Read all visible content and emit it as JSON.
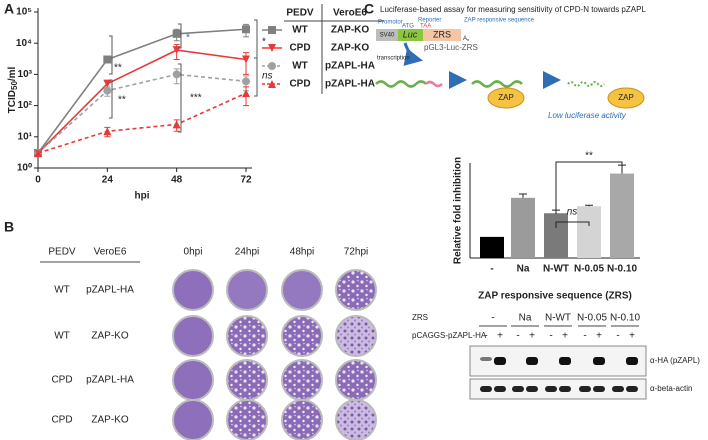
{
  "panels": {
    "a": "A",
    "b": "B",
    "c": "C"
  },
  "chart_data": [
    {
      "type": "line",
      "ylabel_parts": [
        "TCID",
        "50",
        "/ml"
      ],
      "xlabel": "hpi",
      "x": [
        0,
        24,
        48,
        72
      ],
      "xlim": [
        0,
        72
      ],
      "xticks": [
        0,
        24,
        48,
        72
      ],
      "log_scale": true,
      "ylim": [
        1,
        100000
      ],
      "yticks": [
        {
          "value": 1,
          "label": "10⁰"
        },
        {
          "value": 10,
          "label": "10¹"
        },
        {
          "value": 100,
          "label": "10²"
        },
        {
          "value": 1000,
          "label": "10³"
        },
        {
          "value": 10000,
          "label": "10⁴"
        },
        {
          "value": 100000,
          "label": "10⁵"
        }
      ],
      "legend_header": [
        "PEDV",
        "VeroE6"
      ],
      "series": [
        {
          "name": "WT",
          "cell": "ZAP-KO",
          "color": "#808080",
          "dashed": false,
          "marker": "square",
          "values": [
            3,
            3000,
            20000,
            28000
          ],
          "errors": [
            0.5,
            600,
            8000,
            12000
          ]
        },
        {
          "name": "CPD",
          "cell": "ZAP-KO",
          "color": "#e8393a",
          "dashed": false,
          "marker": "triangle-down",
          "values": [
            3,
            500,
            6000,
            3000
          ],
          "errors": [
            0.5,
            150,
            3000,
            2000
          ]
        },
        {
          "name": "WT",
          "cell": "pZAPL-HA",
          "color": "#a0a0a0",
          "dashed": true,
          "marker": "circle",
          "values": [
            3,
            300,
            1000,
            600
          ],
          "errors": [
            0.5,
            100,
            500,
            300
          ]
        },
        {
          "name": "CPD",
          "cell": "pZAPL-HA",
          "color": "#e8393a",
          "dashed": true,
          "marker": "triangle-up",
          "values": [
            3,
            15,
            25,
            250
          ],
          "errors": [
            0.5,
            5,
            10,
            150
          ]
        }
      ],
      "annotations": [
        {
          "text": "**",
          "color": "#222"
        },
        {
          "text": "*",
          "color": "#3355cc"
        },
        {
          "text": "*",
          "color": "#222"
        },
        {
          "text": "**",
          "color": "#222"
        },
        {
          "text": "***",
          "color": "#222"
        },
        {
          "text": "ns",
          "color": "#222"
        }
      ]
    },
    {
      "type": "bar",
      "ylabel": "Relative fold inhibition",
      "categories": [
        "-",
        "Na",
        "N-WT",
        "N-0.05",
        "N-0.10"
      ],
      "values": [
        1,
        2.85,
        2.12,
        2.45,
        4.0
      ],
      "errors": [
        0,
        0.18,
        0.15,
        0.05,
        0.4
      ],
      "colors": [
        "#000000",
        "#9b9b9b",
        "#7a7a7a",
        "#d4d4d4",
        "#a8a8a8"
      ],
      "ylim": [
        0,
        4.5
      ],
      "annotations": [
        {
          "text": "ns"
        },
        {
          "text": "**"
        }
      ]
    }
  ],
  "plates": {
    "header": [
      "PEDV",
      "VeroE6",
      "0hpi",
      "24hpi",
      "48hpi",
      "72hpi"
    ],
    "rows": [
      [
        "WT",
        "pZAPL-HA"
      ],
      [
        "WT",
        "ZAP-KO"
      ],
      [
        "CPD",
        "pZAPL-HA"
      ],
      [
        "CPD",
        "ZAP-KO"
      ]
    ]
  },
  "diagram": {
    "title": "Luciferase-based assay for measuring sensitivity of CPD-N towards pZAPL",
    "promotor": "Promotor",
    "reporter": "Reporter",
    "zrs_label": "ZAP responsive sequence",
    "sv40": "SV40",
    "atg": "ATG",
    "luc": "Luc",
    "taa": "TAA",
    "zrs": "ZRS",
    "polya": "A",
    "polya_sub": "n",
    "plasmid": "pGL3-Luc-ZRS",
    "transcription": "transcription",
    "zap": "ZAP",
    "result": "Low luciferase activity"
  },
  "blot": {
    "title": "ZAP responsive sequence (ZRS)",
    "row_labels": [
      "ZRS",
      "pCAGGS-pZAPL-HA"
    ],
    "groups": [
      "-",
      "Na",
      "N-WT",
      "N-0.05",
      "N-0.10"
    ],
    "lanes": [
      "-",
      "+"
    ],
    "bands": [
      "α-HA (pZAPL)",
      "α-beta-actin"
    ]
  }
}
